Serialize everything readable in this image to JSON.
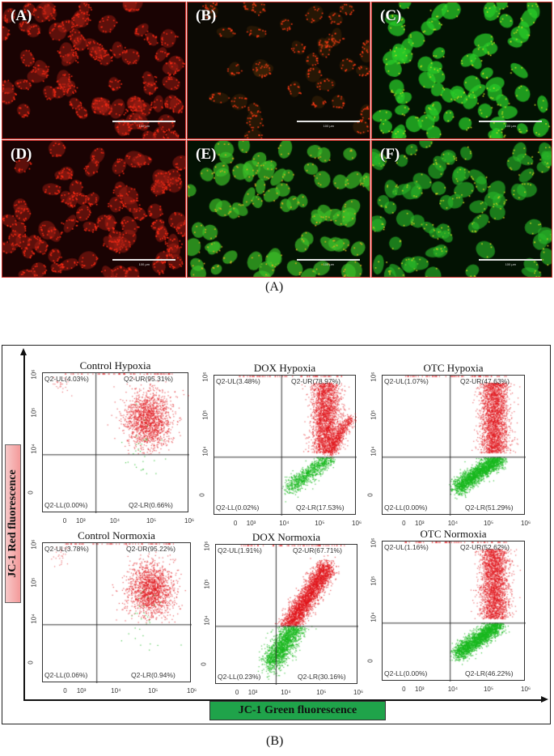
{
  "figure_a": {
    "caption": "(A)",
    "panels": [
      {
        "label": "(A)",
        "dominant": "red",
        "scale_bar": "100 µm"
      },
      {
        "label": "(B)",
        "dominant": "red-sparse",
        "scale_bar": "100 µm"
      },
      {
        "label": "(C)",
        "dominant": "green",
        "scale_bar": "100 µm"
      },
      {
        "label": "(D)",
        "dominant": "red",
        "scale_bar": "100 µm"
      },
      {
        "label": "(E)",
        "dominant": "green-yellow",
        "scale_bar": "100 µm"
      },
      {
        "label": "(F)",
        "dominant": "green",
        "scale_bar": "100 µm"
      }
    ]
  },
  "figure_b": {
    "caption": "(B)",
    "y_axis_label": "JC-1 Red fluorescence",
    "x_axis_label": "JC-1 Green fluorescence",
    "colors": {
      "red_label_bg": "#f49a9a",
      "green_label_bg": "#1fa34a",
      "red_dots": "#e0141a",
      "green_dots": "#19b81e"
    }
  },
  "chart_data": [
    {
      "type": "scatter",
      "title": "Control Hypoxia",
      "xlabel": "JC-1 Green fluorescence",
      "ylabel": "JC-1 Red fluorescence",
      "x_ticks": [
        "0",
        "10³",
        "10⁴",
        "10⁵",
        "10⁶"
      ],
      "y_ticks": [
        "0",
        "10⁴",
        "10⁵",
        "10⁶"
      ],
      "quadrants": {
        "UL": "Q2-UL(4.03%)",
        "UR": "Q2-UR(95.31%)",
        "LL": "Q2-LL(0.00%)",
        "LR": "Q2-LR(0.66%)"
      },
      "values": {
        "UL": 4.03,
        "UR": 95.31,
        "LL": 0.0,
        "LR": 0.66
      }
    },
    {
      "type": "scatter",
      "title": "DOX Hypoxia",
      "xlabel": "JC-1 Green fluorescence",
      "ylabel": "JC-1 Red fluorescence",
      "x_ticks": [
        "0",
        "10³",
        "10⁴",
        "10⁵",
        "10⁶"
      ],
      "y_ticks": [
        "0",
        "10⁴",
        "10⁵",
        "10⁶"
      ],
      "quadrants": {
        "UL": "Q2-UL(3.48%)",
        "UR": "Q2-UR(78.97%)",
        "LL": "Q2-LL(0.02%)",
        "LR": "Q2-LR(17.53%)"
      },
      "values": {
        "UL": 3.48,
        "UR": 78.97,
        "LL": 0.02,
        "LR": 17.53
      }
    },
    {
      "type": "scatter",
      "title": "OTC Hypoxia",
      "xlabel": "JC-1 Green fluorescence",
      "ylabel": "JC-1 Red fluorescence",
      "x_ticks": [
        "0",
        "10³",
        "10⁴",
        "10⁵",
        "10⁶"
      ],
      "y_ticks": [
        "0",
        "10⁴",
        "10⁵",
        "10⁶"
      ],
      "quadrants": {
        "UL": "Q2-UL(1.07%)",
        "UR": "Q2-UR(47.63%)",
        "LL": "Q2-LL(0.00%)",
        "LR": "Q2-LR(51.29%)"
      },
      "values": {
        "UL": 1.07,
        "UR": 47.63,
        "LL": 0.0,
        "LR": 51.29
      }
    },
    {
      "type": "scatter",
      "title": "Control Normoxia",
      "xlabel": "JC-1 Green fluorescence",
      "ylabel": "JC-1 Red fluorescence",
      "x_ticks": [
        "0",
        "10³",
        "10⁴",
        "10⁵",
        "10⁶"
      ],
      "y_ticks": [
        "0",
        "10⁴",
        "10⁵",
        "10⁶"
      ],
      "quadrants": {
        "UL": "Q2-UL(3.78%)",
        "UR": "Q2-UR(95.22%)",
        "LL": "Q2-LL(0.06%)",
        "LR": "Q2-LR(0.94%)"
      },
      "values": {
        "UL": 3.78,
        "UR": 95.22,
        "LL": 0.06,
        "LR": 0.94
      }
    },
    {
      "type": "scatter",
      "title": "DOX Normoxia",
      "xlabel": "JC-1 Green fluorescence",
      "ylabel": "JC-1 Red fluorescence",
      "x_ticks": [
        "0",
        "10³",
        "10⁴",
        "10⁵",
        "10⁶"
      ],
      "y_ticks": [
        "0",
        "10⁴",
        "10⁵",
        "10⁶"
      ],
      "quadrants": {
        "UL": "Q2-UL(1.91%)",
        "UR": "Q2-UR(67.71%)",
        "LL": "Q2-LL(0.23%)",
        "LR": "Q2-LR(30.16%)"
      },
      "values": {
        "UL": 1.91,
        "UR": 67.71,
        "LL": 0.23,
        "LR": 30.16
      }
    },
    {
      "type": "scatter",
      "title": "OTC Normoxia",
      "xlabel": "JC-1 Green fluorescence",
      "ylabel": "JC-1 Red fluorescence",
      "x_ticks": [
        "0",
        "10³",
        "10⁴",
        "10⁵",
        "10⁶"
      ],
      "y_ticks": [
        "0",
        "10⁴",
        "10⁵",
        "10⁶"
      ],
      "quadrants": {
        "UL": "Q2-UL(1.16%)",
        "UR": "Q2-UR(52.62%)",
        "LL": "Q2-LL(0.00%)",
        "LR": "Q2-LR(46.22%)"
      },
      "values": {
        "UL": 1.16,
        "UR": 52.62,
        "LL": 0.0,
        "LR": 46.22
      }
    }
  ]
}
